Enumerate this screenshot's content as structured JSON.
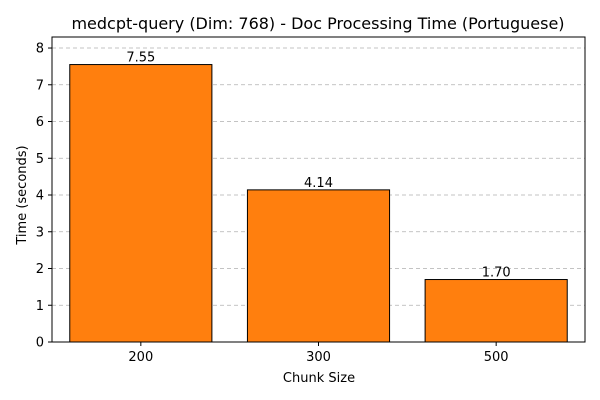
{
  "chart_data": {
    "type": "bar",
    "title": "medcpt-query (Dim: 768) - Doc Processing Time (Portuguese)",
    "xlabel": "Chunk Size",
    "ylabel": "Time (seconds)",
    "categories": [
      "200",
      "300",
      "500"
    ],
    "values": [
      7.55,
      4.14,
      1.7
    ],
    "value_labels": [
      "7.55",
      "4.14",
      "1.70"
    ],
    "ylim": [
      0,
      8.3
    ],
    "yticks": [
      0,
      1,
      2,
      3,
      4,
      5,
      6,
      7,
      8
    ],
    "grid": "y-dashed",
    "bar_color": "#ff7f0e",
    "edge_color": "#000000"
  }
}
